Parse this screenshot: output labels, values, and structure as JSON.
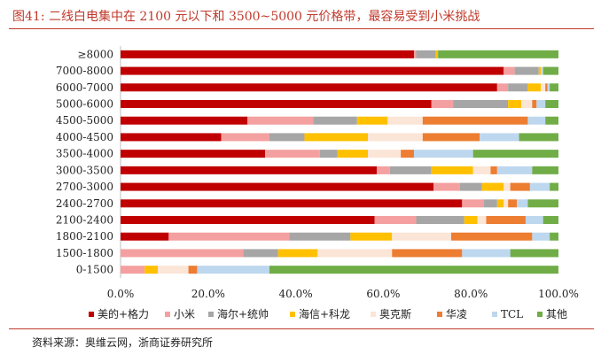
{
  "title": "图41:  二线白电集中在 2100 元以下和 3500~5000 元价格带，最容易受到小米挑战",
  "source": "资料来源：奥维云网，浙商证券研究所",
  "chart_data": {
    "type": "bar",
    "orientation": "horizontal",
    "stacked": "percent",
    "title": "二线白电集中在 2100 元以下和 3500~5000 元价格带，最容易受到小米挑战",
    "categories": [
      "≥8000",
      "7000-8000",
      "6000-7000",
      "5000-6000",
      "4500-5000",
      "4000-4500",
      "3500-4000",
      "3000-3500",
      "2700-3000",
      "2400-2700",
      "2100-2400",
      "1800-2100",
      "1500-1800",
      "0-1500"
    ],
    "xlim": [
      0,
      100
    ],
    "xticks": [
      "0.0%",
      "20.0%",
      "40.0%",
      "60.0%",
      "80.0%",
      "100.0%"
    ],
    "legend_position": "bottom",
    "series": [
      {
        "name": "美的+格力",
        "color": "#c00000",
        "values": [
          67,
          87.5,
          86,
          71,
          29,
          23,
          33,
          58.5,
          71.5,
          78,
          58,
          11,
          0,
          0
        ]
      },
      {
        "name": "小米",
        "color": "#f4a0a0",
        "values": [
          0.5,
          2.5,
          2.5,
          5,
          15,
          11,
          12.5,
          3,
          6,
          5,
          9.5,
          27.5,
          28,
          5.5
        ]
      },
      {
        "name": "海尔+统帅",
        "color": "#a6a6a6",
        "values": [
          4.5,
          5.5,
          4.5,
          12.5,
          10,
          8,
          4,
          9.5,
          5,
          3,
          11,
          14,
          8,
          0
        ]
      },
      {
        "name": "海信+科龙",
        "color": "#ffc000",
        "values": [
          0.5,
          0.5,
          3,
          3,
          7,
          14.5,
          7,
          9.5,
          5,
          1.5,
          3,
          9.5,
          9,
          3
        ]
      },
      {
        "name": "奥克斯",
        "color": "#fbe5d6",
        "values": [
          0,
          0,
          1,
          2.5,
          8,
          12.5,
          7.5,
          4,
          1.5,
          1,
          2,
          13.5,
          17,
          7
        ]
      },
      {
        "name": "华凌",
        "color": "#ed7d31",
        "values": [
          0,
          0,
          0.5,
          1,
          24,
          13,
          3,
          1.5,
          4.5,
          2,
          9,
          18.5,
          16,
          2
        ]
      },
      {
        "name": "TCL",
        "color": "#bdd7ee",
        "values": [
          0,
          0.5,
          0.5,
          2,
          4,
          9,
          13.5,
          8,
          4.5,
          2.5,
          4,
          4,
          11,
          16.5
        ]
      },
      {
        "name": "其他",
        "color": "#70ad47",
        "values": [
          27.5,
          3.5,
          2,
          3,
          3,
          9,
          19.5,
          6,
          2,
          7,
          3.5,
          2,
          11,
          66
        ]
      }
    ]
  }
}
